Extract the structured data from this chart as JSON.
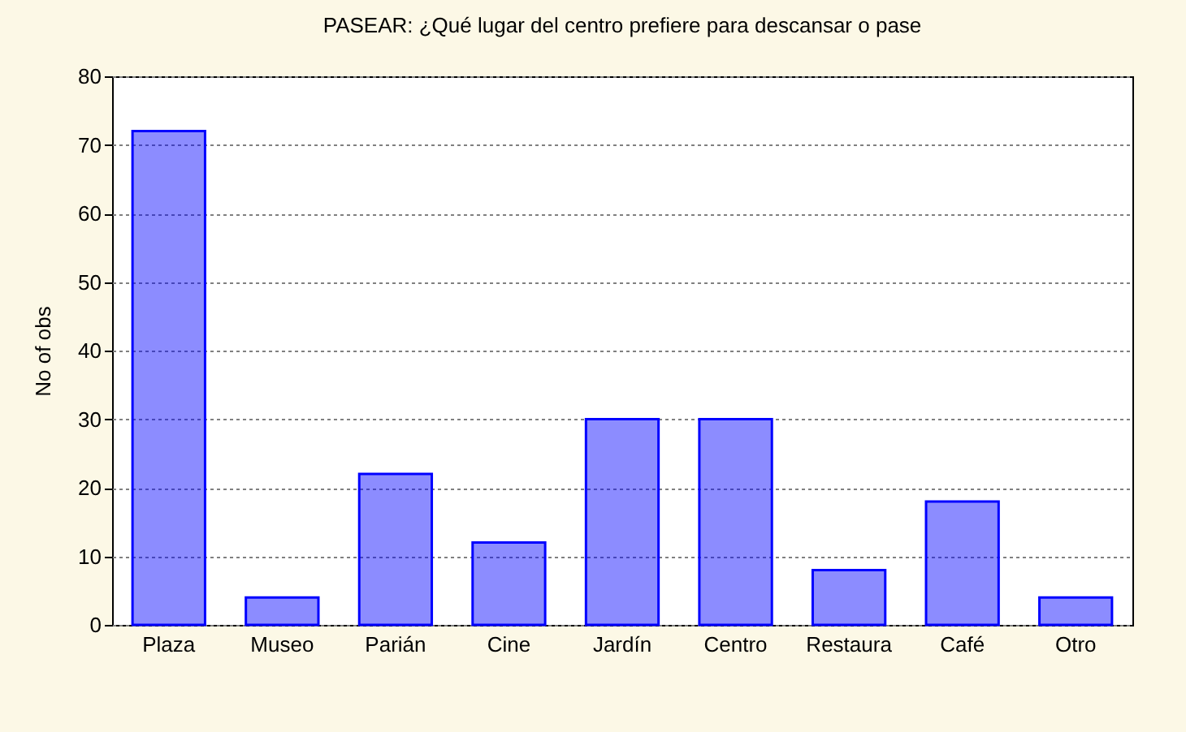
{
  "chart_data": {
    "type": "bar",
    "title": "PASEAR: ¿Qué lugar del centro prefiere para descansar o pase",
    "ylabel": "No of obs",
    "categories": [
      "Plaza",
      "Museo",
      "Parián",
      "Cine",
      "Jardín",
      "Centro",
      "Restaura",
      "Café",
      "Otro"
    ],
    "values": [
      72,
      4,
      22,
      12,
      30,
      30,
      8,
      18,
      4
    ],
    "color": "#0000ff",
    "ylim": [
      0,
      80
    ],
    "yticks": [
      0,
      10,
      20,
      30,
      40,
      50,
      60,
      70,
      80
    ],
    "grid": "y"
  }
}
